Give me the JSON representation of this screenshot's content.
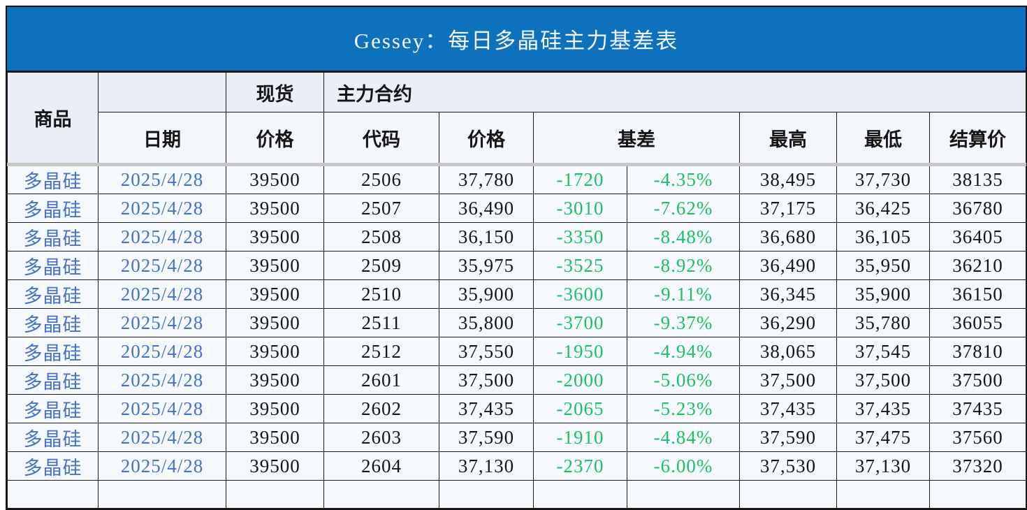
{
  "title": "Gessey：每日多晶硅主力基差表",
  "header": {
    "commodity": "商品",
    "date": "日期",
    "spot_group": "现货",
    "main_contract_group": "主力合约",
    "spot_price": "价格",
    "code": "代码",
    "price": "价格",
    "basis": "基差",
    "high": "最高",
    "low": "最低",
    "settlement": "结算价"
  },
  "colors": {
    "title_bar_blue": "#0e71bd",
    "title_text": "#f4f8fb",
    "basis_green": "#1ebe64",
    "commodity_date_blue": "#4671c8",
    "header_divider_gray": "#c7c7c7",
    "cell_background": "#f5f9fd"
  },
  "chart_data": {
    "type": "table",
    "title": "Gessey：每日多晶硅主力基差表",
    "columns": [
      "商品",
      "日期",
      "现货价格",
      "主力合约代码",
      "主力合约价格",
      "基差",
      "基差百分比",
      "最高",
      "最低",
      "结算价"
    ],
    "rows": [
      [
        "多晶硅",
        "2025/4/28",
        "39500",
        "2506",
        "37,780",
        "-1720",
        "-4.35%",
        "38,495",
        "37,730",
        "38135"
      ],
      [
        "多晶硅",
        "2025/4/28",
        "39500",
        "2507",
        "36,490",
        "-3010",
        "-7.62%",
        "37,175",
        "36,425",
        "36780"
      ],
      [
        "多晶硅",
        "2025/4/28",
        "39500",
        "2508",
        "36,150",
        "-3350",
        "-8.48%",
        "36,680",
        "36,105",
        "36405"
      ],
      [
        "多晶硅",
        "2025/4/28",
        "39500",
        "2509",
        "35,975",
        "-3525",
        "-8.92%",
        "36,490",
        "35,950",
        "36210"
      ],
      [
        "多晶硅",
        "2025/4/28",
        "39500",
        "2510",
        "35,900",
        "-3600",
        "-9.11%",
        "36,345",
        "35,900",
        "36150"
      ],
      [
        "多晶硅",
        "2025/4/28",
        "39500",
        "2511",
        "35,800",
        "-3700",
        "-9.37%",
        "36,290",
        "35,780",
        "36055"
      ],
      [
        "多晶硅",
        "2025/4/28",
        "39500",
        "2512",
        "37,550",
        "-1950",
        "-4.94%",
        "38,065",
        "37,545",
        "37810"
      ],
      [
        "多晶硅",
        "2025/4/28",
        "39500",
        "2601",
        "37,500",
        "-2000",
        "-5.06%",
        "37,500",
        "37,500",
        "37500"
      ],
      [
        "多晶硅",
        "2025/4/28",
        "39500",
        "2602",
        "37,435",
        "-2065",
        "-5.23%",
        "37,435",
        "37,435",
        "37435"
      ],
      [
        "多晶硅",
        "2025/4/28",
        "39500",
        "2603",
        "37,590",
        "-1910",
        "-4.84%",
        "37,590",
        "37,475",
        "37560"
      ],
      [
        "多晶硅",
        "2025/4/28",
        "39500",
        "2604",
        "37,130",
        "-2370",
        "-6.00%",
        "37,530",
        "37,130",
        "37320"
      ]
    ]
  }
}
